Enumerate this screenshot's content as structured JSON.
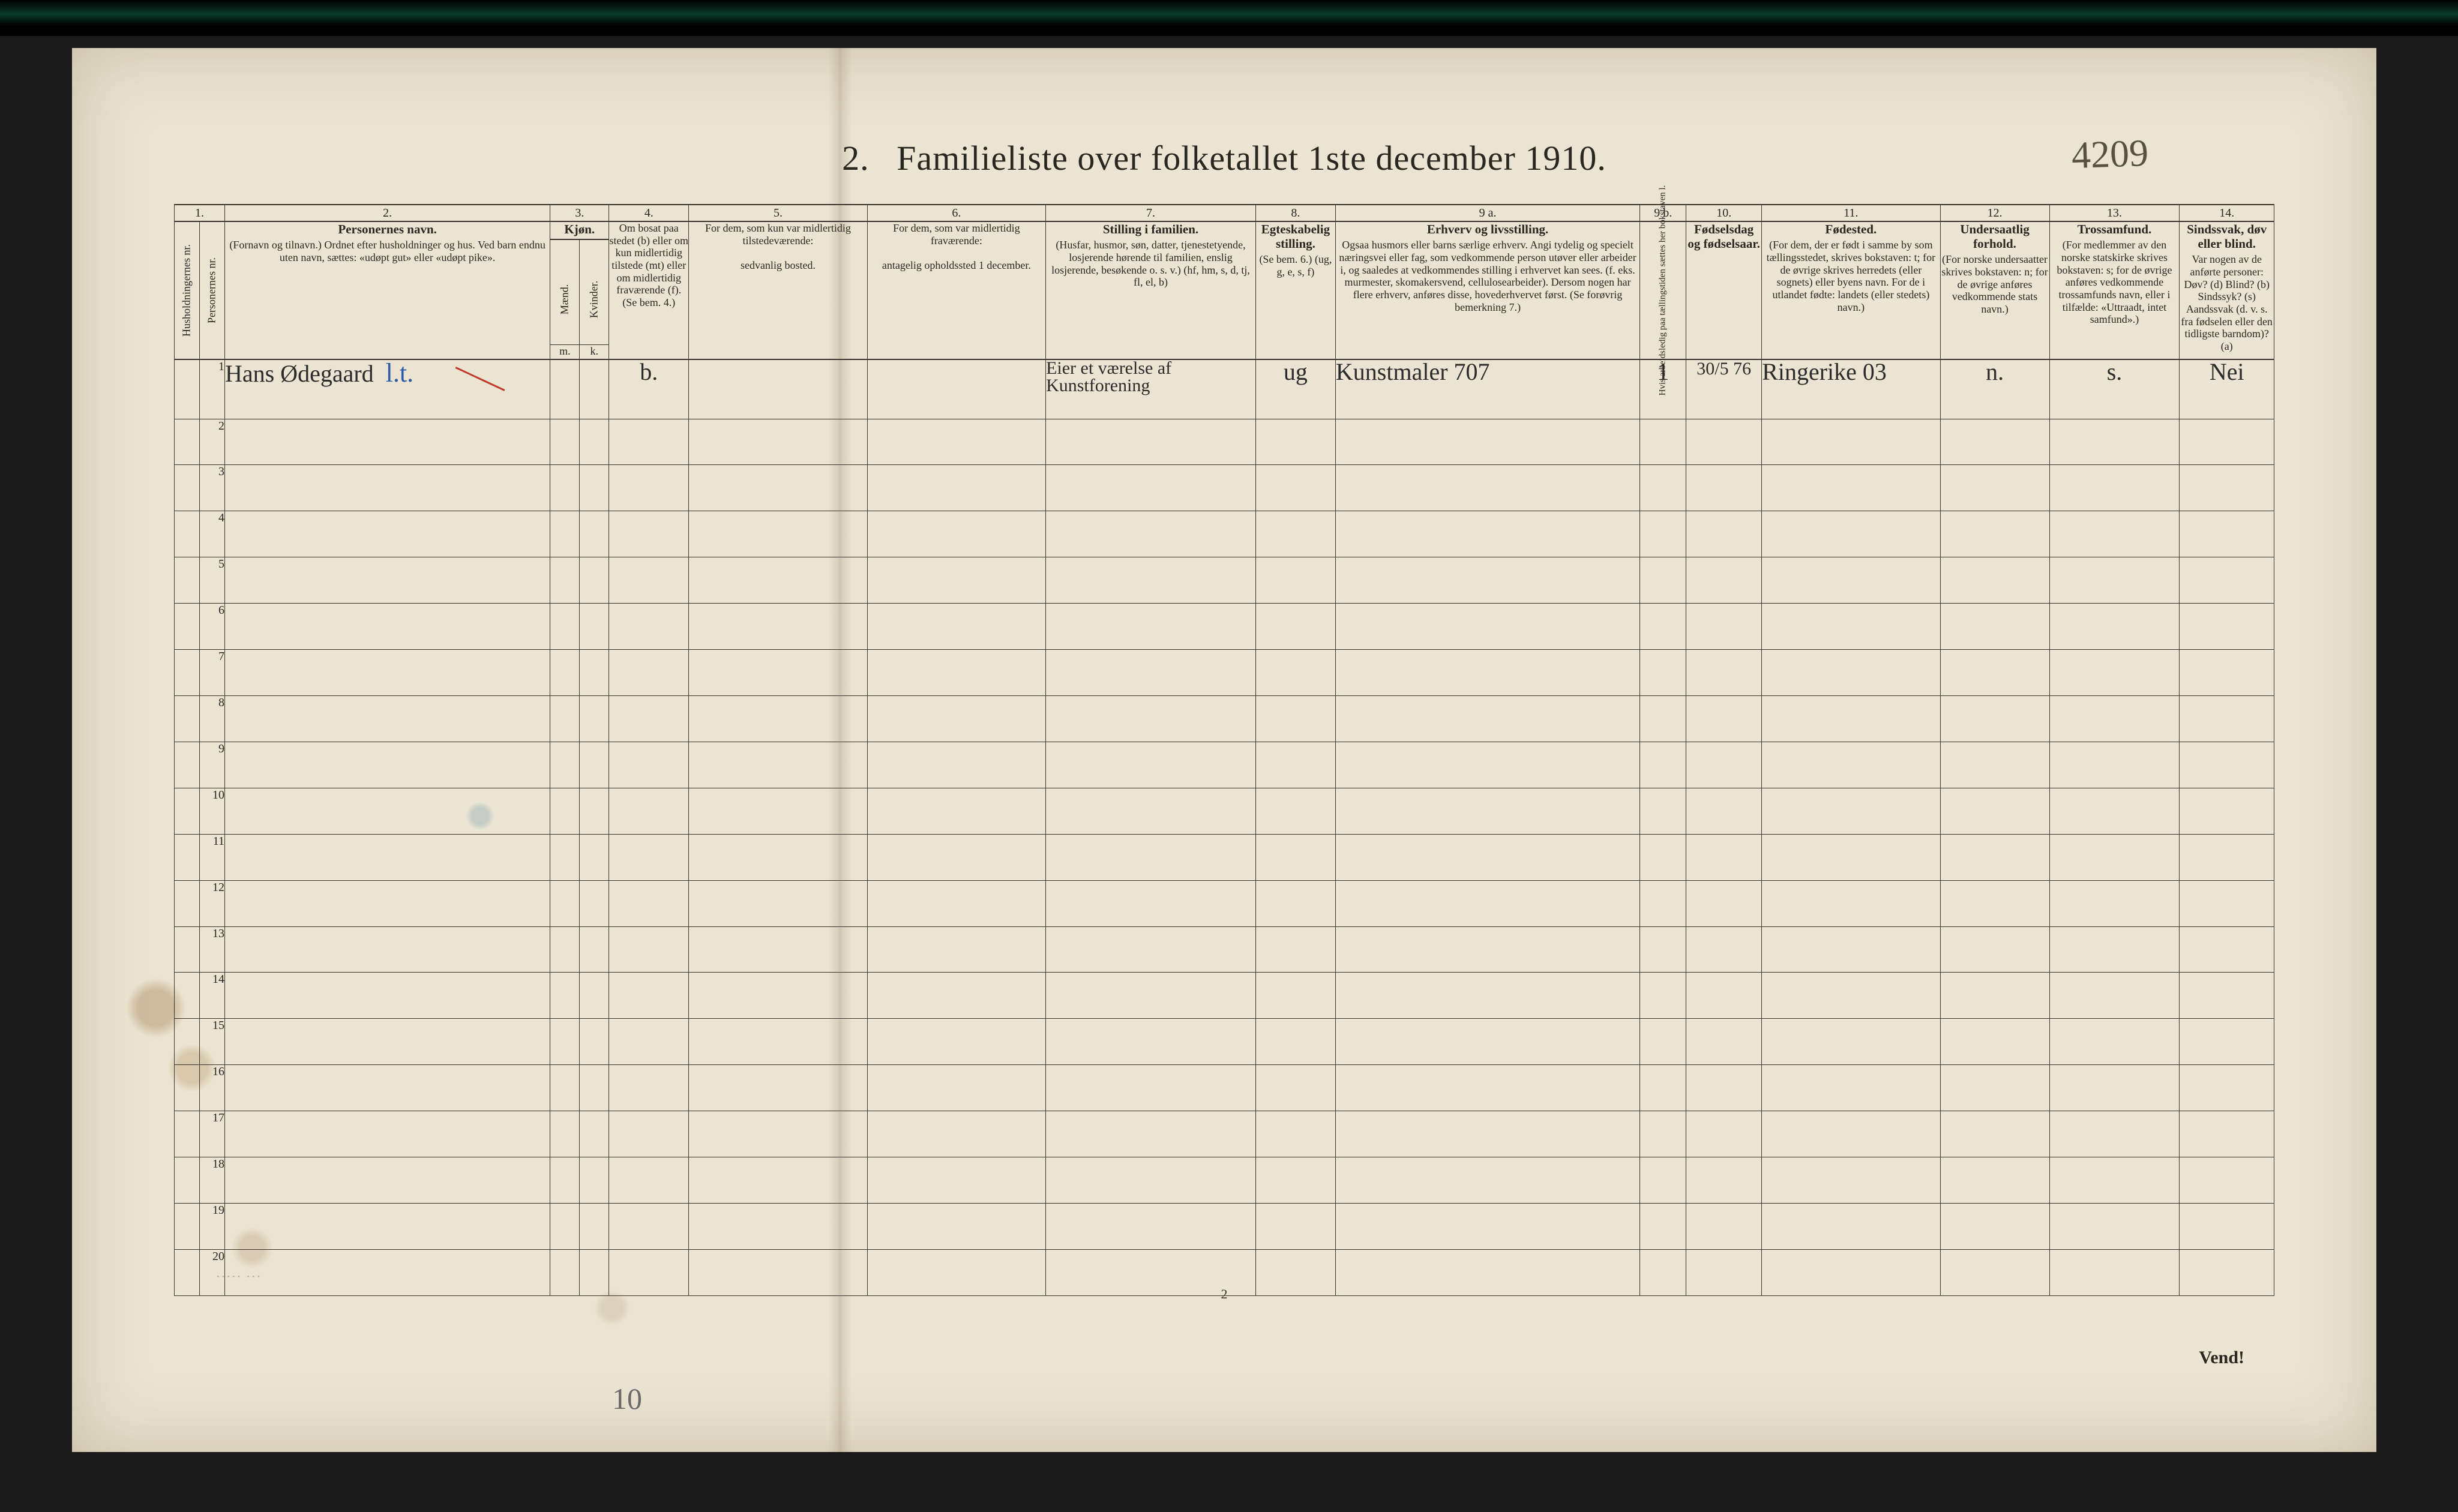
{
  "title": {
    "num": "2.",
    "text": "Familieliste over folketallet 1ste december 1910."
  },
  "annotation_topright": "4209",
  "columns": {
    "c1": {
      "num": "1.",
      "v1": "Husholdningernes nr.",
      "v2": "Personernes nr."
    },
    "c2": {
      "num": "2.",
      "title": "Personernes navn.",
      "sub": "(Fornavn og tilnavn.)\nOrdnet efter husholdninger og hus.\nVed barn endnu uten navn, sættes: «udøpt gut» eller «udøpt pike»."
    },
    "c3": {
      "num": "3.",
      "title": "Kjøn.",
      "sub_m": "Mænd.",
      "sub_k": "Kvinder.",
      "foot_m": "m.",
      "foot_k": "k."
    },
    "c4": {
      "num": "4.",
      "text": "Om bosat paa stedet (b) eller om kun midlertidig tilstede (mt) eller om midlertidig fraværende (f). (Se bem. 4.)"
    },
    "c5": {
      "num": "5.",
      "text": "For dem, som kun var midlertidig tilstedeværende:",
      "sub": "sedvanlig bosted."
    },
    "c6": {
      "num": "6.",
      "text": "For dem, som var midlertidig fraværende:",
      "sub": "antagelig opholdssted 1 december."
    },
    "c7": {
      "num": "7.",
      "title": "Stilling i familien.",
      "sub": "(Husfar, husmor, søn, datter, tjenestetyende, losjerende hørende til familien, enslig losjerende, besøkende o. s. v.)\n(hf, hm, s, d, tj, fl, el, b)"
    },
    "c8": {
      "num": "8.",
      "title": "Egteskabelig stilling.",
      "sub": "(Se bem. 6.)\n(ug, g, e, s, f)"
    },
    "c9": {
      "num": "9 a.",
      "title": "Erhverv og livsstilling.",
      "sub": "Ogsaa husmors eller barns særlige erhverv. Angi tydelig og specielt næringsvei eller fag, som vedkommende person utøver eller arbeider i, og saaledes at vedkommendes stilling i erhvervet kan sees. (f. eks. murmester, skomakersvend, cellulosearbeider). Dersom nogen har flere erhverv, anføres disse, hovederhvervet først. (Se forøvrig bemerkning 7.)"
    },
    "c9b": {
      "num": "9 b.",
      "v": "Hvis arbeidsledig paa tællingstiden sættes her bokstaven l."
    },
    "c10": {
      "num": "10.",
      "title": "Fødselsdag og fødselsaar."
    },
    "c11": {
      "num": "11.",
      "title": "Fødested.",
      "sub": "(For dem, der er født i samme by som tællingsstedet, skrives bokstaven: t; for de øvrige skrives herredets (eller sognets) eller byens navn. For de i utlandet fødte: landets (eller stedets) navn.)"
    },
    "c12": {
      "num": "12.",
      "title": "Undersaatlig forhold.",
      "sub": "(For norske undersaatter skrives bokstaven: n; for de øvrige anføres vedkommende stats navn.)"
    },
    "c13": {
      "num": "13.",
      "title": "Trossamfund.",
      "sub": "(For medlemmer av den norske statskirke skrives bokstaven: s; for de øvrige anføres vedkommende trossamfunds navn, eller i tilfælde: «Uttraadt, intet samfund».)"
    },
    "c14": {
      "num": "14.",
      "title": "Sindssvak, døv eller blind.",
      "sub": "Var nogen av de anførte personer:\nDøv? (d)\nBlind? (b)\nSindssyk? (s)\nAandssvak (d. v. s. fra fødselen eller den tidligste barndom)? (a)"
    }
  },
  "rows": [
    {
      "n": "1",
      "name": "Hans Ødegaard",
      "name_suffix_blue": "l.t.",
      "kjon_m": "",
      "kjon_k": "",
      "c4": "b.",
      "c5": "",
      "c6": "",
      "c7": "Eier et værelse af Kunstforening",
      "c8": "ug",
      "c9": "Kunstmaler   707",
      "c9b": "1",
      "c10": "30/5 76",
      "c11": "Ringerike 03",
      "c12": "n.",
      "c13": "s.",
      "c14": "Nei"
    },
    {
      "n": "2"
    },
    {
      "n": "3"
    },
    {
      "n": "4"
    },
    {
      "n": "5"
    },
    {
      "n": "6"
    },
    {
      "n": "7"
    },
    {
      "n": "8"
    },
    {
      "n": "9"
    },
    {
      "n": "10"
    },
    {
      "n": "11"
    },
    {
      "n": "12"
    },
    {
      "n": "13"
    },
    {
      "n": "14"
    },
    {
      "n": "15"
    },
    {
      "n": "16"
    },
    {
      "n": "17"
    },
    {
      "n": "18"
    },
    {
      "n": "19"
    },
    {
      "n": "20"
    }
  ],
  "footer": {
    "pagenum": "2",
    "vend": "Vend!",
    "pencil": "10",
    "faint": "····· ···"
  },
  "colors": {
    "paper": "#ebe4d2",
    "ink": "#2a2620",
    "rule": "#3a342c",
    "red": "#c0392b",
    "blue": "#2a5aa8"
  }
}
